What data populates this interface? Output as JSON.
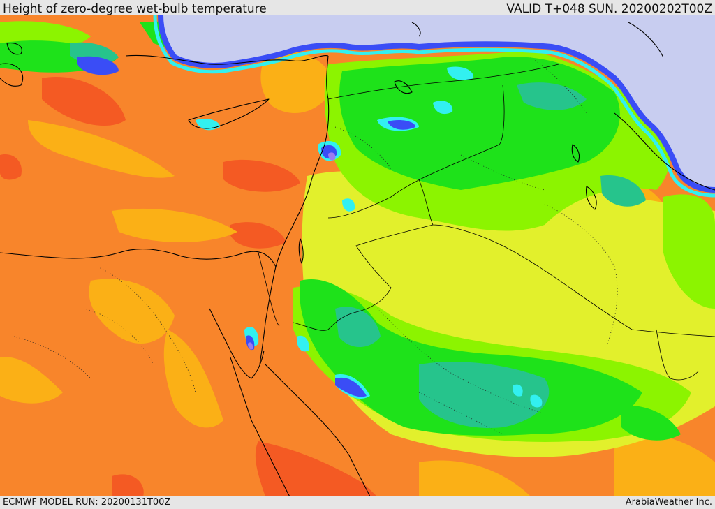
{
  "header": {
    "title": "Height of zero-degree wet-bulb temperature",
    "valid_time": "VALID T+048 SUN. 20200202T00Z"
  },
  "footer": {
    "model_run": "ECMWF MODEL RUN: 20200131T00Z",
    "credit": "ArabiaWeather Inc."
  },
  "palette": {
    "background_orange": "#f8852b",
    "red_orange": "#f45a23",
    "amber": "#fbb016",
    "yellow_green": "#e2f02c",
    "lime": "#8cf400",
    "green": "#1ee21a",
    "teal": "#26c48c",
    "cyan": "#32f0f0",
    "blue": "#3a4df6",
    "violet": "#9c7cf0",
    "lavender": "#c8cdf0",
    "coastline": "#000000"
  }
}
